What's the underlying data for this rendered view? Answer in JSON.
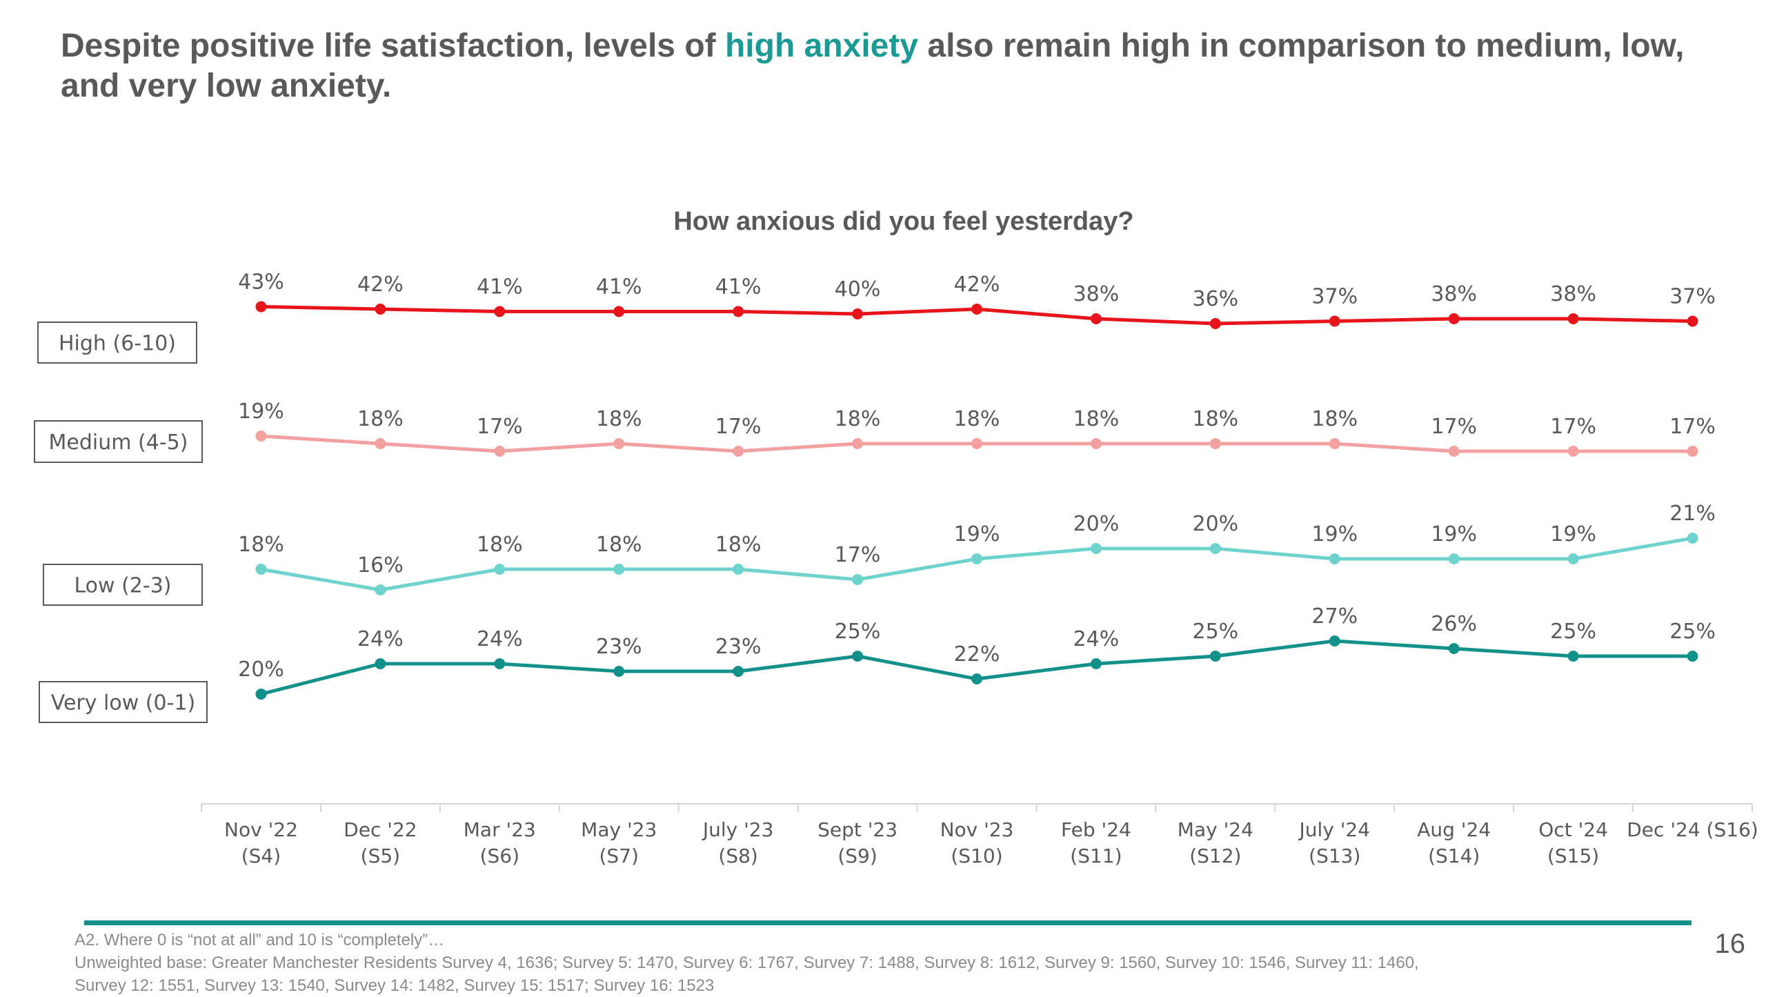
{
  "slide": {
    "title_pre": "Despite positive life satisfaction, levels of ",
    "title_highlight": "high anxiety",
    "title_post": " also remain high in comparison to medium, low, and very low anxiety.",
    "page_number": "16"
  },
  "footnote": {
    "line1": "A2. Where 0 is “not at all” and 10 is “completely”…",
    "line2": "Unweighted base: Greater Manchester Residents Survey 4, 1636; Survey 5: 1470, Survey 6: 1767, Survey 7: 1488, Survey 8: 1612, Survey 9: 1560, Survey 10: 1546, Survey 11: 1460,",
    "line3": "Survey 12: 1551, Survey 13: 1540, Survey 14: 1482, Survey 15: 1517; Survey 16: 1523"
  },
  "chart_data": {
    "type": "line",
    "title": "How anxious did you feel yesterday?",
    "categories": [
      [
        "Nov '22",
        "(S4)"
      ],
      [
        "Dec '22",
        "(S5)"
      ],
      [
        "Mar '23",
        "(S6)"
      ],
      [
        "May '23",
        "(S7)"
      ],
      [
        "July '23",
        "(S8)"
      ],
      [
        "Sept '23",
        "(S9)"
      ],
      [
        "Nov '23",
        "(S10)"
      ],
      [
        "Feb '24",
        "(S11)"
      ],
      [
        "May '24",
        "(S12)"
      ],
      [
        "July '24",
        "(S13)"
      ],
      [
        "Aug '24",
        "(S14)"
      ],
      [
        "Oct '24",
        "(S15)"
      ],
      [
        "Dec '24 (S16)",
        ""
      ]
    ],
    "value_suffix": "%",
    "series": [
      {
        "name": "High (6-10)",
        "color": "#e8141b",
        "values": [
          43,
          42,
          41,
          41,
          41,
          40,
          42,
          38,
          36,
          37,
          38,
          38,
          37
        ]
      },
      {
        "name": "Medium (4-5)",
        "color": "#f2a0a0",
        "values": [
          19,
          18,
          17,
          18,
          17,
          18,
          18,
          18,
          18,
          18,
          17,
          17,
          17
        ]
      },
      {
        "name": "Low (2-3)",
        "color": "#6dd3cc",
        "values": [
          18,
          16,
          18,
          18,
          18,
          17,
          19,
          20,
          20,
          19,
          19,
          19,
          21
        ]
      },
      {
        "name": "Very low (0-1)",
        "color": "#12918b",
        "values": [
          20,
          24,
          24,
          23,
          23,
          25,
          22,
          24,
          25,
          27,
          26,
          25,
          25
        ]
      }
    ]
  }
}
